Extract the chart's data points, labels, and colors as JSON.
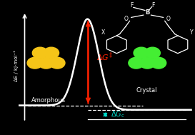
{
  "background_color": "#000000",
  "curve_color": "#ffffff",
  "curve_linewidth": 1.8,
  "arrow_color_red": "#ff2200",
  "arrow_color_cyan": "#00ddcc",
  "dashed_line_color": "#ffffff",
  "axis_color": "#ffffff",
  "text_color": "#ffffff",
  "label_amorphous": "Amorphous",
  "label_crystal": "Crystal",
  "ylabel": "ΔE / kJ·mol⁻¹",
  "amorphous_ball_color": "#f5c518",
  "crystal_ball_color": "#44ee33"
}
